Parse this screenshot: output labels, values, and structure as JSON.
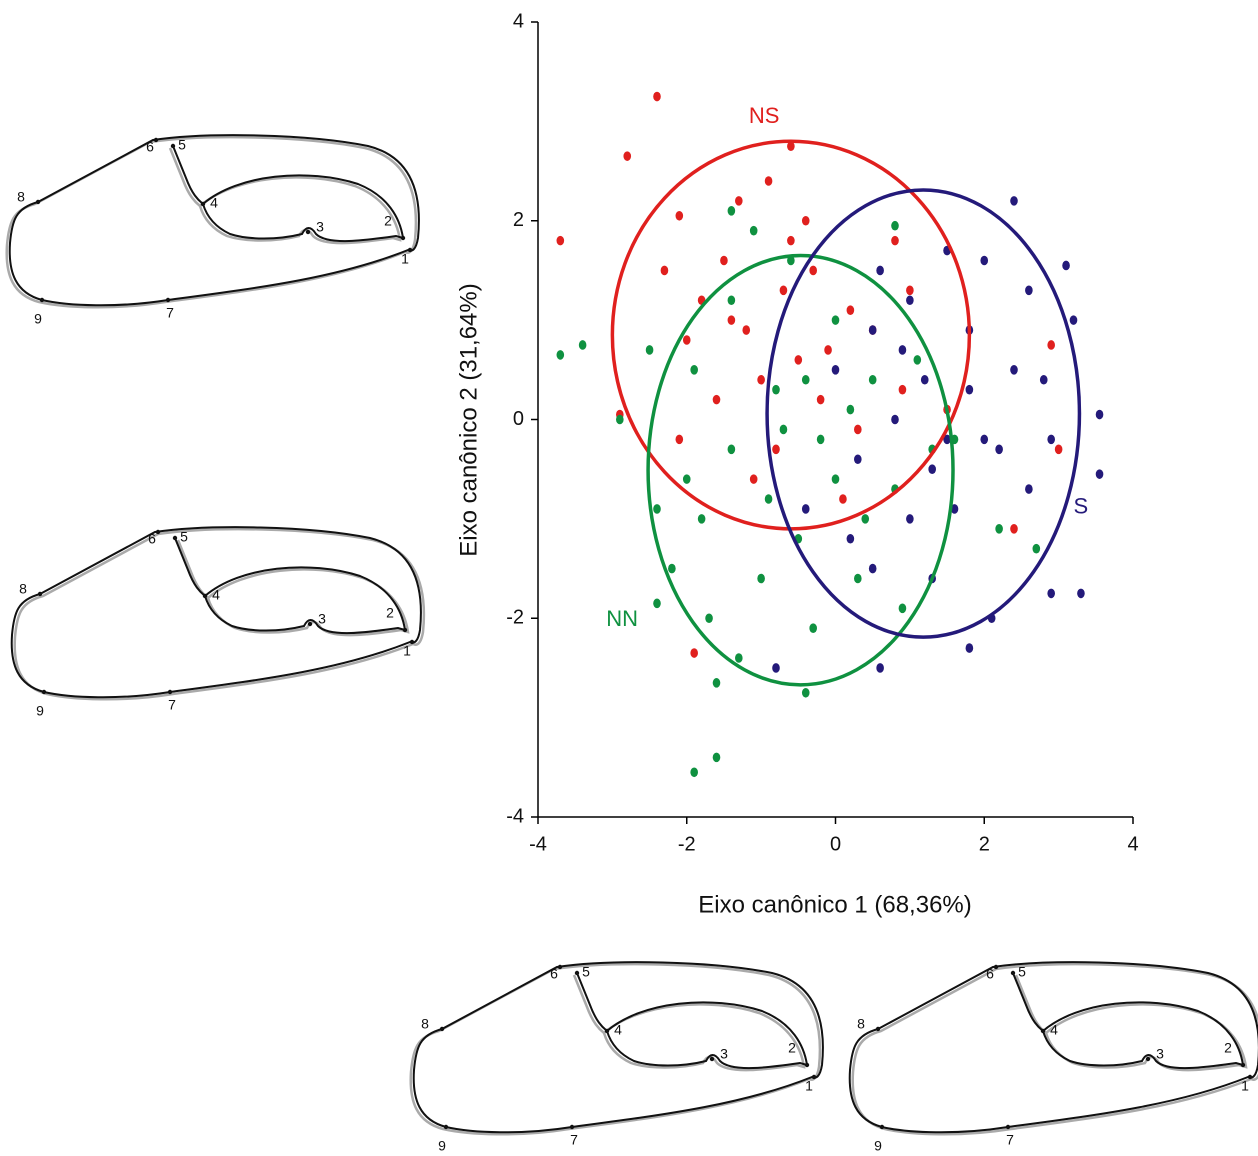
{
  "chart_data": {
    "type": "scatter",
    "xlabel": "Eixo canônico 1 (68,36%)",
    "ylabel": "Eixo canônico 2 (31,64%)",
    "xlim": [
      -4,
      4
    ],
    "xticks": [
      -4,
      -2,
      0,
      2,
      4
    ],
    "ylim": [
      -4,
      4
    ],
    "yticks": [
      -4,
      -2,
      0,
      2,
      4
    ],
    "series": [
      {
        "name": "NS",
        "color": "#e0201e",
        "ellipse": {
          "cx": -0.6,
          "cy": 0.85,
          "rx": 2.4,
          "ry": 1.95
        },
        "x": [
          -2.4,
          -3.7,
          -2.8,
          -0.6,
          -0.9,
          -2.9,
          -1.3,
          -2.1,
          -1.5,
          -0.3,
          -1.8,
          -0.7,
          -1.2,
          -2.0,
          0.2,
          -0.5,
          -1.0,
          -1.6,
          0.5,
          1.0,
          -0.2,
          -2.1,
          -0.8,
          0.3,
          1.5,
          2.9,
          3.0,
          2.4,
          -1.9,
          0.8,
          -0.4,
          -1.4,
          -0.1,
          -2.3,
          0.9,
          -1.1,
          0.1,
          -0.6
        ],
        "y": [
          3.25,
          1.8,
          2.65,
          2.75,
          2.4,
          0.05,
          2.2,
          2.05,
          1.6,
          1.5,
          1.2,
          1.3,
          0.9,
          0.8,
          1.1,
          0.6,
          0.4,
          0.2,
          0.9,
          1.3,
          0.2,
          -0.2,
          -0.3,
          -0.1,
          0.1,
          0.75,
          -0.3,
          -1.1,
          -2.35,
          1.8,
          2.0,
          1.0,
          0.7,
          1.5,
          0.3,
          -0.6,
          -0.8,
          1.8
        ]
      },
      {
        "name": "NN",
        "color": "#0f9140",
        "ellipse": {
          "cx": -0.47,
          "cy": -0.51,
          "rx": 2.05,
          "ry": 2.16
        },
        "x": [
          -3.7,
          -3.4,
          -2.9,
          -1.9,
          -1.6,
          -1.6,
          -0.4,
          -2.4,
          -2.2,
          -2.4,
          -1.3,
          -1.8,
          -1.0,
          -0.5,
          0.0,
          -1.4,
          -0.8,
          -0.2,
          0.4,
          0.8,
          1.3,
          -1.9,
          -2.5,
          -1.4,
          -0.6,
          -1.4,
          -1.1,
          0.8,
          0.0,
          -0.4,
          0.5,
          1.6,
          2.2,
          2.7,
          0.9,
          -0.3,
          0.3,
          -1.7,
          -0.9,
          0.2,
          1.1,
          -0.7,
          -2.0
        ],
        "y": [
          0.65,
          0.75,
          0.0,
          -3.55,
          -3.4,
          -2.65,
          -2.75,
          -0.9,
          -1.5,
          -1.85,
          -2.4,
          -1.0,
          -1.6,
          -1.2,
          -0.6,
          -0.3,
          0.3,
          -0.2,
          -1.0,
          -0.7,
          -0.3,
          0.5,
          0.7,
          1.2,
          1.6,
          2.1,
          1.9,
          1.95,
          1.0,
          0.4,
          0.4,
          -0.2,
          -1.1,
          -1.3,
          -1.9,
          -2.1,
          -1.6,
          -2.0,
          -0.8,
          0.1,
          0.6,
          -0.1,
          -0.6
        ]
      },
      {
        "name": "S",
        "color": "#241a7a",
        "ellipse": {
          "cx": 1.18,
          "cy": 0.06,
          "rx": 2.1,
          "ry": 2.25
        },
        "x": [
          2.4,
          3.1,
          3.55,
          3.55,
          3.3,
          2.9,
          2.1,
          1.8,
          0.6,
          -0.8,
          2.8,
          2.0,
          1.5,
          1.0,
          0.5,
          1.8,
          2.4,
          2.0,
          1.3,
          0.8,
          0.3,
          1.0,
          1.6,
          2.6,
          2.2,
          0.5,
          1.3,
          -0.4,
          0.0,
          3.2,
          2.6,
          1.2,
          0.6,
          1.8,
          2.9,
          0.2,
          1.5,
          0.9
        ],
        "y": [
          2.2,
          1.55,
          0.05,
          -0.55,
          -1.75,
          -1.75,
          -2.0,
          -2.3,
          -2.5,
          -2.5,
          0.4,
          1.6,
          1.7,
          1.2,
          0.9,
          0.9,
          0.5,
          -0.2,
          -0.5,
          0.0,
          -0.4,
          -1.0,
          -0.9,
          -0.7,
          -0.3,
          -1.5,
          -1.6,
          -0.9,
          0.5,
          1.0,
          1.3,
          0.4,
          1.5,
          0.3,
          -0.2,
          -1.2,
          -0.2,
          0.7
        ]
      }
    ]
  },
  "outlines": [
    {
      "landmarks": [
        "1",
        "2",
        "3",
        "4",
        "5",
        "6",
        "7",
        "8",
        "9"
      ]
    },
    {
      "landmarks": [
        "1",
        "2",
        "3",
        "4",
        "5",
        "6",
        "7",
        "8",
        "9"
      ]
    },
    {
      "landmarks": [
        "1",
        "2",
        "3",
        "4",
        "5",
        "6",
        "7",
        "8",
        "9"
      ]
    },
    {
      "landmarks": [
        "1",
        "2",
        "3",
        "4",
        "5",
        "6",
        "7",
        "8",
        "9"
      ]
    }
  ]
}
